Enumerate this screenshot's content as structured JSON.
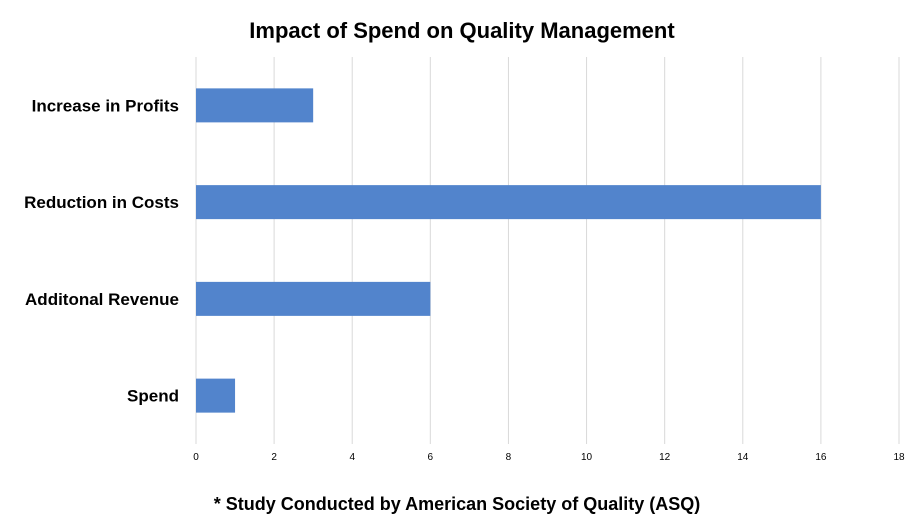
{
  "chart_data": {
    "type": "bar",
    "orientation": "horizontal",
    "title": "Impact of Spend on Quality Management",
    "footnote": "* Study Conducted by American Society of Quality (ASQ)",
    "categories": [
      "Increase in Profits",
      "Reduction in Costs",
      "Additonal Revenue",
      "Spend"
    ],
    "values": [
      3,
      16,
      6,
      1
    ],
    "xlim": [
      0,
      18
    ],
    "xticks": [
      0,
      2,
      4,
      6,
      8,
      10,
      12,
      14,
      16,
      18
    ],
    "grid": true,
    "legend": "none",
    "bar_color": "#5284cc",
    "grid_color": "#d9d9d9"
  }
}
